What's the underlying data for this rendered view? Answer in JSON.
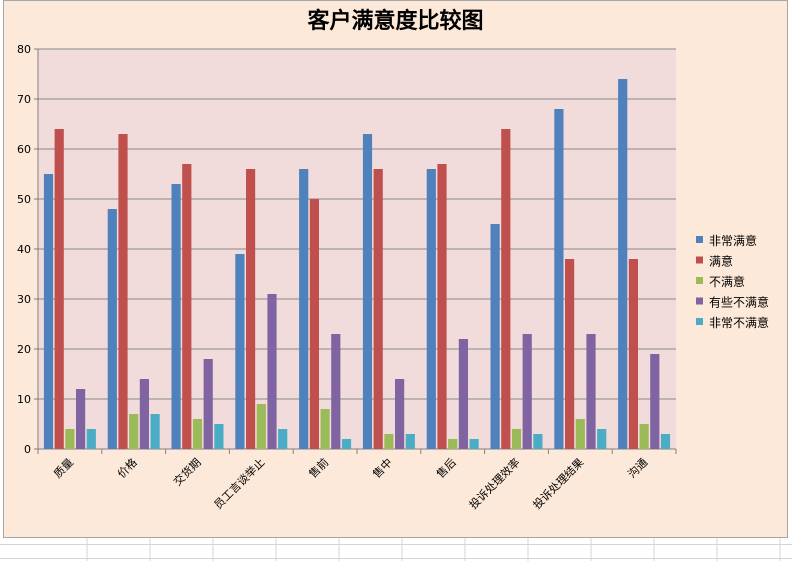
{
  "chart_data": {
    "type": "bar",
    "title": "客户满意度比较图",
    "xlabel": "",
    "ylabel": "",
    "ylim": [
      0,
      80
    ],
    "yticks": [
      0,
      10,
      20,
      30,
      40,
      50,
      60,
      70,
      80
    ],
    "grid": true,
    "legend_position": "right",
    "categories": [
      "质量",
      "价格",
      "交货期",
      "员工言谈举止",
      "售前",
      "售中",
      "售后",
      "投诉处理效率",
      "投诉处理结果",
      "沟通"
    ],
    "series": [
      {
        "name": "非常满意",
        "color": "#4f81bd",
        "values": [
          55,
          48,
          53,
          39,
          56,
          63,
          56,
          45,
          68,
          74
        ]
      },
      {
        "name": "满意",
        "color": "#c0504d",
        "values": [
          64,
          63,
          57,
          56,
          50,
          56,
          57,
          64,
          38,
          38
        ]
      },
      {
        "name": "不满意",
        "color": "#9bbb59",
        "values": [
          4,
          7,
          6,
          9,
          8,
          3,
          2,
          4,
          6,
          5
        ]
      },
      {
        "name": "有些不满意",
        "color": "#8064a2",
        "values": [
          12,
          14,
          18,
          31,
          23,
          14,
          22,
          23,
          23,
          19
        ]
      },
      {
        "name": "非常不满意",
        "color": "#4bacc6",
        "values": [
          4,
          7,
          5,
          4,
          2,
          3,
          2,
          3,
          4,
          3
        ]
      }
    ]
  },
  "colors": {
    "plot_background": "#f2dcdb",
    "chart_background": "#fde9d9",
    "gridline": "#888888"
  }
}
